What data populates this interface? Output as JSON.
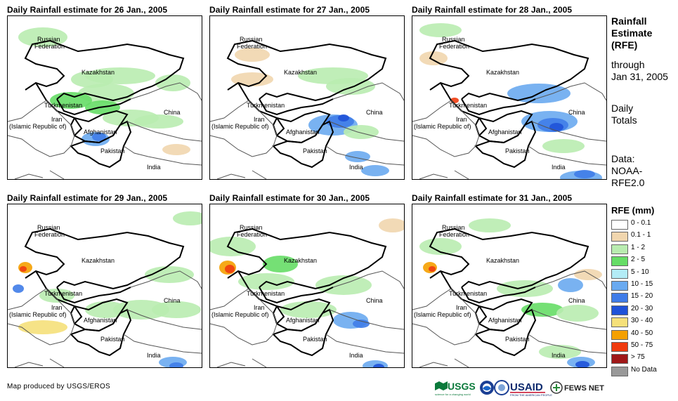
{
  "panels": [
    {
      "title": "Daily Rainfall estimate for 26 Jan., 2005"
    },
    {
      "title": "Daily Rainfall estimate for 27 Jan., 2005"
    },
    {
      "title": "Daily Rainfall estimate for 28 Jan., 2005"
    },
    {
      "title": "Daily Rainfall estimate for 29 Jan., 2005"
    },
    {
      "title": "Daily Rainfall estimate for 30 Jan., 2005"
    },
    {
      "title": "Daily Rainfall estimate for 31 Jan., 2005"
    }
  ],
  "map_labels": {
    "russia_1": "Russian",
    "russia_2": "Federation",
    "kazakhstan": "Kazakhstan",
    "turkmenistan": "Turkmenistan",
    "iran_1": "Iran",
    "iran_2": "(Islamic Republic of)",
    "afghanistan": "Afghanistan",
    "pakistan": "Pakistan",
    "china": "China",
    "india": "India"
  },
  "side_info": {
    "title_1": "Rainfall",
    "title_2": "Estimate",
    "title_3": "(RFE)",
    "through_1": "through",
    "through_2": "Jan 31, 2005",
    "totals_1": "Daily",
    "totals_2": "Totals",
    "data_1": "Data:",
    "data_2": "NOAA-",
    "data_3": "RFE2.0"
  },
  "legend": {
    "title": "RFE (mm)",
    "items": [
      {
        "label": "0 - 0.1",
        "color": "#ffffff"
      },
      {
        "label": "0.1 - 1",
        "color": "#f1d6ae"
      },
      {
        "label": "1 - 2",
        "color": "#b9ecb0"
      },
      {
        "label": "2 - 5",
        "color": "#66dd66"
      },
      {
        "label": "5 - 10",
        "color": "#b3ecf6"
      },
      {
        "label": "10 - 15",
        "color": "#6aaaf0"
      },
      {
        "label": "15 - 20",
        "color": "#3f7ce8"
      },
      {
        "label": "20 - 30",
        "color": "#1f52d8"
      },
      {
        "label": "30 - 40",
        "color": "#f5e07a"
      },
      {
        "label": "40 - 50",
        "color": "#f5a000"
      },
      {
        "label": "50 - 75",
        "color": "#f03c10"
      },
      {
        "label": "> 75",
        "color": "#a01818"
      },
      {
        "label": "No Data",
        "color": "#999999"
      }
    ]
  },
  "credit": "Map produced by USGS/EROS",
  "logos": {
    "usgs": "USGS",
    "usgs_tagline": "science for a changing world",
    "usaid": "USAID",
    "usaid_tagline": "FROM THE AMERICAN PEOPLE",
    "fews": "FEWS NET"
  }
}
